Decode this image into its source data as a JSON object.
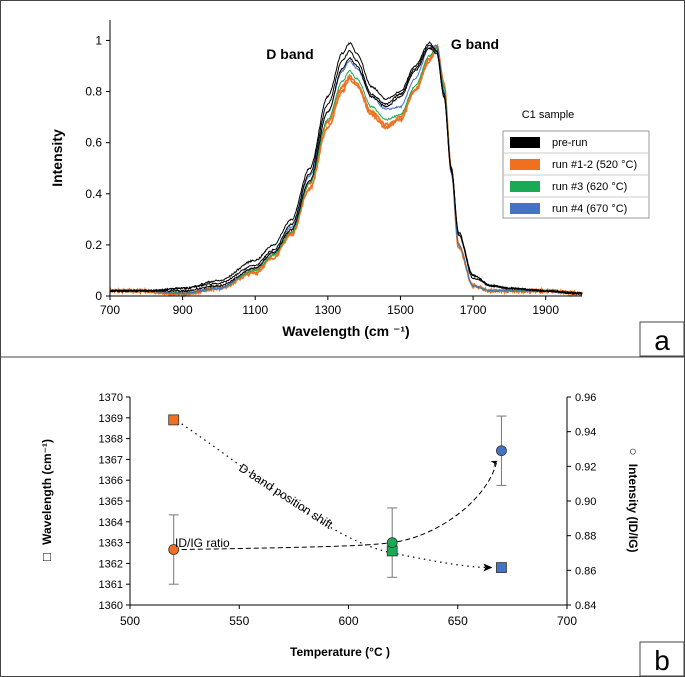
{
  "chart_data": [
    {
      "panel": "a",
      "type": "line",
      "title": "",
      "xlabel": "Wavelength (cm ⁻¹)",
      "ylabel": "Intensity",
      "xlim": [
        700,
        2000
      ],
      "ylim": [
        0,
        1.08
      ],
      "xticks": [
        700,
        900,
        1100,
        1300,
        1500,
        1700,
        1900
      ],
      "yticks": [
        0,
        0.2,
        0.4,
        0.6,
        0.8,
        1
      ],
      "ytick_labels": [
        "0",
        "0.2",
        "0.4",
        "0.6",
        "0.8",
        "1"
      ],
      "annotations": [
        "D band",
        "G band"
      ],
      "legend_title": "C1 sample",
      "legend_position": "right",
      "series": [
        {
          "name": "pre-run",
          "color": "#000000",
          "traces": [
            {
              "x": [
                700,
                800,
                900,
                1000,
                1100,
                1150,
                1200,
                1250,
                1300,
                1340,
                1360,
                1380,
                1420,
                1460,
                1500,
                1540,
                1580,
                1600,
                1620,
                1640,
                1660,
                1700,
                1750,
                1800,
                1900,
                2000
              ],
              "y": [
                0.02,
                0.02,
                0.03,
                0.06,
                0.14,
                0.2,
                0.3,
                0.5,
                0.78,
                0.95,
                0.99,
                0.95,
                0.82,
                0.77,
                0.8,
                0.9,
                0.99,
                0.96,
                0.78,
                0.5,
                0.25,
                0.08,
                0.04,
                0.03,
                0.02,
                0.01
              ]
            },
            {
              "x": [
                700,
                800,
                900,
                1000,
                1100,
                1150,
                1200,
                1250,
                1300,
                1340,
                1360,
                1380,
                1420,
                1460,
                1500,
                1540,
                1580,
                1600,
                1620,
                1640,
                1660,
                1700,
                1750,
                1800,
                1900,
                2000
              ],
              "y": [
                0.02,
                0.02,
                0.03,
                0.05,
                0.12,
                0.18,
                0.28,
                0.48,
                0.75,
                0.92,
                0.96,
                0.92,
                0.79,
                0.75,
                0.79,
                0.89,
                0.98,
                0.96,
                0.79,
                0.5,
                0.24,
                0.08,
                0.04,
                0.03,
                0.02,
                0.01
              ]
            },
            {
              "x": [
                700,
                800,
                900,
                1000,
                1100,
                1150,
                1200,
                1250,
                1300,
                1340,
                1360,
                1380,
                1420,
                1460,
                1500,
                1540,
                1580,
                1600,
                1620,
                1640,
                1660,
                1700,
                1750,
                1800,
                1900,
                2000
              ],
              "y": [
                0.02,
                0.02,
                0.02,
                0.04,
                0.11,
                0.17,
                0.26,
                0.45,
                0.72,
                0.89,
                0.93,
                0.9,
                0.78,
                0.74,
                0.78,
                0.88,
                0.97,
                0.95,
                0.78,
                0.49,
                0.24,
                0.07,
                0.04,
                0.03,
                0.02,
                0.01
              ]
            }
          ]
        },
        {
          "name": "run #1-2 (520 °C)",
          "color": "#f07020",
          "traces": [
            {
              "x": [
                700,
                800,
                850,
                900,
                1000,
                1100,
                1150,
                1200,
                1250,
                1300,
                1340,
                1360,
                1380,
                1420,
                1460,
                1500,
                1540,
                1580,
                1600,
                1620,
                1640,
                1660,
                1700,
                1750,
                1800,
                1900,
                2000
              ],
              "y": [
                0.02,
                0.02,
                0.01,
                0.01,
                0.03,
                0.1,
                0.16,
                0.25,
                0.44,
                0.68,
                0.82,
                0.86,
                0.83,
                0.72,
                0.67,
                0.7,
                0.81,
                0.93,
                0.98,
                0.83,
                0.5,
                0.2,
                0.04,
                0.02,
                0.02,
                0.02,
                0.01
              ]
            },
            {
              "x": [
                700,
                800,
                850,
                900,
                1000,
                1100,
                1150,
                1200,
                1250,
                1300,
                1340,
                1360,
                1380,
                1420,
                1460,
                1500,
                1540,
                1580,
                1600,
                1620,
                1640,
                1660,
                1700,
                1750,
                1800,
                1900,
                2000
              ],
              "y": [
                0.02,
                0.02,
                0.01,
                0.01,
                0.03,
                0.09,
                0.15,
                0.24,
                0.42,
                0.66,
                0.8,
                0.85,
                0.82,
                0.71,
                0.66,
                0.69,
                0.8,
                0.92,
                0.97,
                0.82,
                0.49,
                0.19,
                0.04,
                0.02,
                0.02,
                0.02,
                0.01
              ]
            }
          ]
        },
        {
          "name": "run #3 (620 °C)",
          "color": "#1aaa55",
          "traces": [
            {
              "x": [
                700,
                800,
                900,
                1000,
                1100,
                1150,
                1200,
                1250,
                1300,
                1340,
                1360,
                1380,
                1420,
                1460,
                1500,
                1540,
                1580,
                1600,
                1620,
                1640,
                1660,
                1700,
                1750,
                1800,
                1900,
                2000
              ],
              "y": [
                0.02,
                0.02,
                0.01,
                0.03,
                0.1,
                0.16,
                0.25,
                0.44,
                0.69,
                0.84,
                0.88,
                0.85,
                0.74,
                0.69,
                0.71,
                0.82,
                0.94,
                0.97,
                0.82,
                0.49,
                0.2,
                0.04,
                0.02,
                0.02,
                0.02,
                0.01
              ]
            }
          ]
        },
        {
          "name": "run #4 (670 °C)",
          "color": "#4472c4",
          "traces": [
            {
              "x": [
                700,
                800,
                900,
                1000,
                1100,
                1150,
                1200,
                1250,
                1300,
                1340,
                1360,
                1380,
                1420,
                1460,
                1500,
                1540,
                1580,
                1600,
                1620,
                1640,
                1660,
                1700,
                1750,
                1800,
                1900,
                2000
              ],
              "y": [
                0.02,
                0.02,
                0.01,
                0.03,
                0.11,
                0.17,
                0.27,
                0.47,
                0.72,
                0.88,
                0.92,
                0.89,
                0.78,
                0.73,
                0.74,
                0.85,
                0.97,
                0.98,
                0.8,
                0.48,
                0.2,
                0.04,
                0.02,
                0.02,
                0.02,
                0.01
              ]
            }
          ]
        }
      ]
    },
    {
      "panel": "b",
      "type": "scatter",
      "xlabel": "Temperature (°C )",
      "ylabel_left": "Wavelength (cm⁻¹)",
      "ylabel_right": "Intensity (ID/IG)",
      "ylabel_left_marker": "□",
      "ylabel_right_marker": "○",
      "xlim": [
        500,
        700
      ],
      "ylim_left": [
        1360,
        1370
      ],
      "ylim_right": [
        0.84,
        0.96
      ],
      "xticks": [
        500,
        550,
        600,
        650,
        700
      ],
      "yticks_left": [
        1360,
        1361,
        1362,
        1363,
        1364,
        1365,
        1366,
        1367,
        1368,
        1369,
        1370
      ],
      "yticks_right": [
        0.84,
        0.86,
        0.88,
        0.9,
        0.92,
        0.94,
        0.96
      ],
      "ytick_right_labels": [
        "0.84",
        "0.86",
        "0.88",
        "0.90",
        "0.92",
        "0.94",
        "0.96"
      ],
      "annotations": [
        "D band position shift",
        "ID/IG ratio"
      ],
      "series": [
        {
          "name": "D band position",
          "axis": "left",
          "marker": "square",
          "points": [
            {
              "x": 520,
              "y": 1368.9,
              "color": "#f07020"
            },
            {
              "x": 620,
              "y": 1362.6,
              "color": "#1aaa55"
            },
            {
              "x": 670,
              "y": 1361.8,
              "color": "#4472c4"
            }
          ]
        },
        {
          "name": "ID/IG ratio",
          "axis": "right",
          "marker": "circle",
          "points": [
            {
              "x": 520,
              "y": 0.872,
              "err": 0.02,
              "color": "#f07020"
            },
            {
              "x": 620,
              "y": 0.876,
              "err": 0.02,
              "color": "#1aaa55"
            },
            {
              "x": 670,
              "y": 0.929,
              "err": 0.02,
              "color": "#4472c4"
            }
          ]
        }
      ]
    }
  ],
  "panel_labels": {
    "a": "a",
    "b": "b"
  }
}
